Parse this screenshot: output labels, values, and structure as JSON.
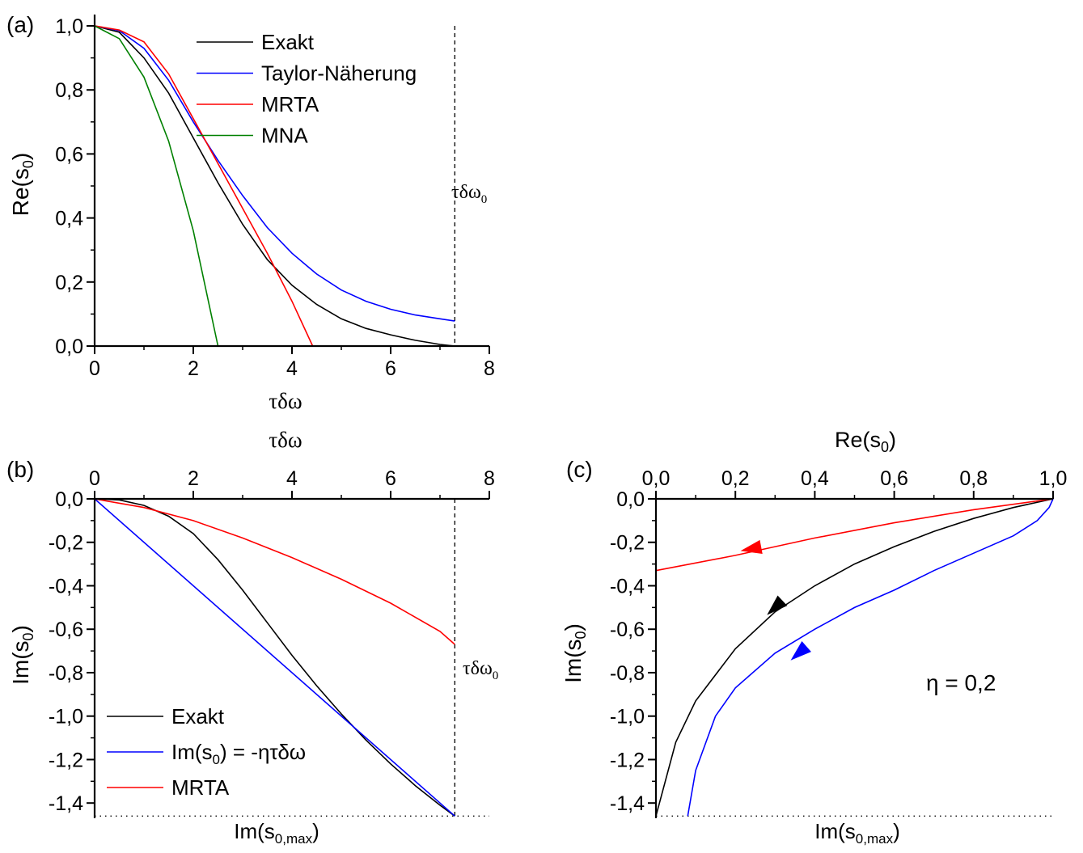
{
  "chart_data": [
    {
      "panel": "(a)",
      "type": "line",
      "xlabel": "τδω",
      "ylabel": "Re(s0)",
      "xlim": [
        0,
        8
      ],
      "ylim": [
        0,
        1.0
      ],
      "x_ticks": [
        "0",
        "2",
        "4",
        "6",
        "8"
      ],
      "y_ticks": [
        "0,0",
        "0,2",
        "0,4",
        "0,6",
        "0,8",
        "1,0"
      ],
      "vline": {
        "x": 7.3,
        "label": "τδω0",
        "style": "dashed"
      },
      "legend_position": "top-right",
      "series": [
        {
          "name": "Exakt",
          "color": "#000000",
          "x": [
            0,
            0.5,
            1,
            1.5,
            2,
            2.5,
            3,
            3.5,
            4,
            4.5,
            5,
            5.5,
            6,
            6.5,
            7,
            7.3
          ],
          "y": [
            1.0,
            0.98,
            0.9,
            0.79,
            0.65,
            0.51,
            0.38,
            0.27,
            0.19,
            0.13,
            0.085,
            0.055,
            0.035,
            0.018,
            0.005,
            0.0
          ]
        },
        {
          "name": "Taylor-Näherung",
          "color": "#0000ff",
          "x": [
            0,
            0.5,
            1,
            1.5,
            2,
            2.5,
            3,
            3.5,
            4,
            4.5,
            5,
            5.5,
            6,
            6.5,
            7,
            7.3
          ],
          "y": [
            1.0,
            0.985,
            0.93,
            0.83,
            0.7,
            0.58,
            0.47,
            0.37,
            0.29,
            0.225,
            0.175,
            0.14,
            0.115,
            0.097,
            0.085,
            0.078
          ]
        },
        {
          "name": "MRTA",
          "color": "#ff0000",
          "x": [
            0,
            0.5,
            1,
            1.5,
            2,
            2.5,
            3,
            3.5,
            4,
            4.42
          ],
          "y": [
            1.0,
            0.987,
            0.95,
            0.85,
            0.71,
            0.57,
            0.43,
            0.29,
            0.14,
            0.0
          ]
        },
        {
          "name": "MNA",
          "color": "#008000",
          "x": [
            0,
            0.5,
            1,
            1.5,
            2,
            2.5
          ],
          "y": [
            1.0,
            0.96,
            0.84,
            0.64,
            0.36,
            0.0
          ]
        }
      ]
    },
    {
      "panel": "(b)",
      "type": "line",
      "xlabel": "τδω",
      "ylabel": "Im(s0)",
      "xlim": [
        0,
        8
      ],
      "ylim": [
        -1.47,
        0.0
      ],
      "x_ticks": [
        "0",
        "2",
        "4",
        "6",
        "8"
      ],
      "y_ticks": [
        "0,0",
        "-0,2",
        "-0,4",
        "-0,6",
        "-0,8",
        "-1,0",
        "-1,2",
        "-1,4"
      ],
      "vline": {
        "x": 7.3,
        "label": "τδω0",
        "style": "dashed"
      },
      "hline": {
        "y": -1.46,
        "label": "Im(s0,max)",
        "style": "dotted"
      },
      "legend_position": "bottom-left",
      "series": [
        {
          "name": "Exakt",
          "color": "#000000",
          "x": [
            0,
            0.5,
            1,
            1.5,
            2,
            2.5,
            3,
            3.5,
            4,
            4.5,
            5,
            5.5,
            6,
            6.5,
            7,
            7.3
          ],
          "y": [
            0.0,
            -0.005,
            -0.03,
            -0.08,
            -0.16,
            -0.28,
            -0.42,
            -0.57,
            -0.72,
            -0.86,
            -0.99,
            -1.11,
            -1.22,
            -1.32,
            -1.41,
            -1.46
          ]
        },
        {
          "name": "Im(s0) = -ητδω",
          "color": "#0000ff",
          "x": [
            0,
            7.3
          ],
          "y": [
            0.0,
            -1.46
          ]
        },
        {
          "name": "MRTA",
          "color": "#ff0000",
          "x": [
            0,
            1,
            2,
            3,
            4,
            5,
            6,
            7,
            7.3
          ],
          "y": [
            0.0,
            -0.04,
            -0.1,
            -0.18,
            -0.27,
            -0.37,
            -0.48,
            -0.61,
            -0.67
          ]
        }
      ]
    },
    {
      "panel": "(c)",
      "type": "line",
      "xlabel": "Re(s0)",
      "ylabel": "Im(s0)",
      "xlim": [
        0,
        1.0
      ],
      "ylim": [
        -1.47,
        0.0
      ],
      "x_ticks": [
        "0,0",
        "0,2",
        "0,4",
        "0,6",
        "0,8",
        "1,0"
      ],
      "y_ticks": [
        "0,0",
        "-0,2",
        "-0,4",
        "-0,6",
        "-0,8",
        "-1,0",
        "-1,2",
        "-1,4"
      ],
      "hline": {
        "y": -1.46,
        "label": "Im(s0,max)",
        "style": "dotted"
      },
      "annotation": "η = 0,2",
      "series": [
        {
          "color": "#000000",
          "x": [
            1.0,
            0.9,
            0.8,
            0.7,
            0.6,
            0.5,
            0.4,
            0.3,
            0.2,
            0.1,
            0.05,
            0.0
          ],
          "y": [
            0.0,
            -0.04,
            -0.09,
            -0.15,
            -0.22,
            -0.3,
            -0.4,
            -0.52,
            -0.69,
            -0.93,
            -1.12,
            -1.46
          ]
        },
        {
          "color": "#0000ff",
          "x": [
            1.0,
            0.99,
            0.96,
            0.9,
            0.8,
            0.7,
            0.6,
            0.5,
            0.4,
            0.3,
            0.2,
            0.15,
            0.1,
            0.08
          ],
          "y": [
            0.0,
            -0.04,
            -0.1,
            -0.17,
            -0.25,
            -0.33,
            -0.42,
            -0.5,
            -0.6,
            -0.71,
            -0.87,
            -1.0,
            -1.25,
            -1.46
          ]
        },
        {
          "color": "#ff0000",
          "x": [
            1.0,
            0.8,
            0.6,
            0.4,
            0.2,
            0.0
          ],
          "y": [
            0.0,
            -0.05,
            -0.11,
            -0.18,
            -0.26,
            -0.33
          ]
        }
      ],
      "arrows": [
        {
          "color": "#000000",
          "x": 0.3,
          "y": -0.5
        },
        {
          "color": "#0000ff",
          "x": 0.36,
          "y": -0.71
        },
        {
          "color": "#ff0000",
          "x": 0.24,
          "y": -0.23
        }
      ]
    }
  ],
  "labels": {
    "panel_a": "(a)",
    "panel_b": "(b)",
    "panel_c": "(c)",
    "a_xlabel": "τδω",
    "b_xlabel": "τδω",
    "a_ylabel_main": "Re(s",
    "a_ylabel_sub": "0",
    "a_ylabel_end": ")",
    "b_ylabel_main": "Im(s",
    "b_ylabel_sub": "0",
    "b_ylabel_end": ")",
    "c_ylabel_main": "Im(s",
    "c_ylabel_sub": "0",
    "c_ylabel_end": ")",
    "c_xlabel_main": "Re(s",
    "c_xlabel_sub": "0",
    "c_xlabel_end": ")",
    "vline_main": "τδω",
    "vline_sub": "0",
    "hline_main": "Im(s",
    "hline_sub": "0,max",
    "hline_end": ")",
    "eta": "η = 0,2",
    "legend_b_blue_main": "Im(s",
    "legend_b_blue_sub": "0",
    "legend_b_blue_end": ") = -ητδω"
  }
}
